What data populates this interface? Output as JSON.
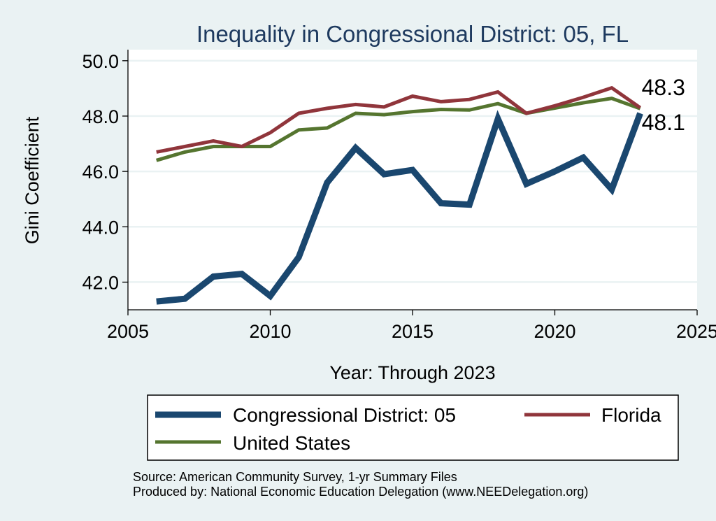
{
  "chart_data": {
    "type": "line",
    "title": "Inequality in Congressional District:  05, FL",
    "xlabel": "Year: Through 2023",
    "ylabel": "Gini Coefficient",
    "xlim": [
      2005,
      2025
    ],
    "ylim": [
      41.0,
      50.4
    ],
    "x_ticks": [
      2005,
      2010,
      2015,
      2020,
      2025
    ],
    "y_ticks": [
      42.0,
      44.0,
      46.0,
      48.0,
      50.0
    ],
    "y_tick_labels": [
      "42.0",
      "44.0",
      "46.0",
      "48.0",
      "50.0"
    ],
    "grid": "horizontal",
    "series": [
      {
        "name": "Congressional District:  05",
        "color": "#1a476f",
        "x": [
          2006,
          2007,
          2008,
          2009,
          2010,
          2011,
          2012,
          2013,
          2014,
          2015,
          2016,
          2017,
          2018,
          2019,
          2020,
          2021,
          2022,
          2023
        ],
        "values": [
          41.3,
          41.4,
          42.2,
          42.3,
          41.5,
          42.9,
          45.6,
          46.85,
          45.9,
          46.05,
          44.85,
          44.8,
          47.9,
          45.55,
          46.0,
          46.5,
          45.35,
          48.1
        ]
      },
      {
        "name": "Florida",
        "color": "#90353b",
        "x": [
          2006,
          2007,
          2008,
          2009,
          2010,
          2011,
          2012,
          2013,
          2014,
          2015,
          2016,
          2017,
          2018,
          2019,
          2020,
          2021,
          2022,
          2023
        ],
        "values": [
          46.7,
          46.9,
          47.1,
          46.9,
          47.4,
          48.1,
          48.28,
          48.42,
          48.33,
          48.72,
          48.52,
          48.6,
          48.87,
          48.1,
          48.37,
          48.68,
          49.02,
          48.3
        ]
      },
      {
        "name": "United States",
        "color": "#55752f",
        "x": [
          2006,
          2007,
          2008,
          2009,
          2010,
          2011,
          2012,
          2013,
          2014,
          2015,
          2016,
          2017,
          2018,
          2019,
          2020,
          2021,
          2022,
          2023
        ],
        "values": [
          46.4,
          46.7,
          46.9,
          46.9,
          46.9,
          47.5,
          47.57,
          48.1,
          48.05,
          48.16,
          48.24,
          48.22,
          48.45,
          48.1,
          48.29,
          48.48,
          48.64,
          48.27
        ]
      }
    ],
    "end_labels": [
      {
        "series": 1,
        "text": "48.3"
      },
      {
        "series": 0,
        "text": "48.1"
      }
    ],
    "legend": {
      "position": "bottom",
      "entries": [
        {
          "label": "Congressional District:  05",
          "color": "#1a476f"
        },
        {
          "label": "Florida",
          "color": "#90353b"
        },
        {
          "label": "United States",
          "color": "#55752f"
        }
      ]
    }
  },
  "footnotes": {
    "source": "Source: American Community Survey, 1-yr Summary Files",
    "produced": "Produced by: National Economic Education Delegation (www.NEEDelegation.org)"
  }
}
